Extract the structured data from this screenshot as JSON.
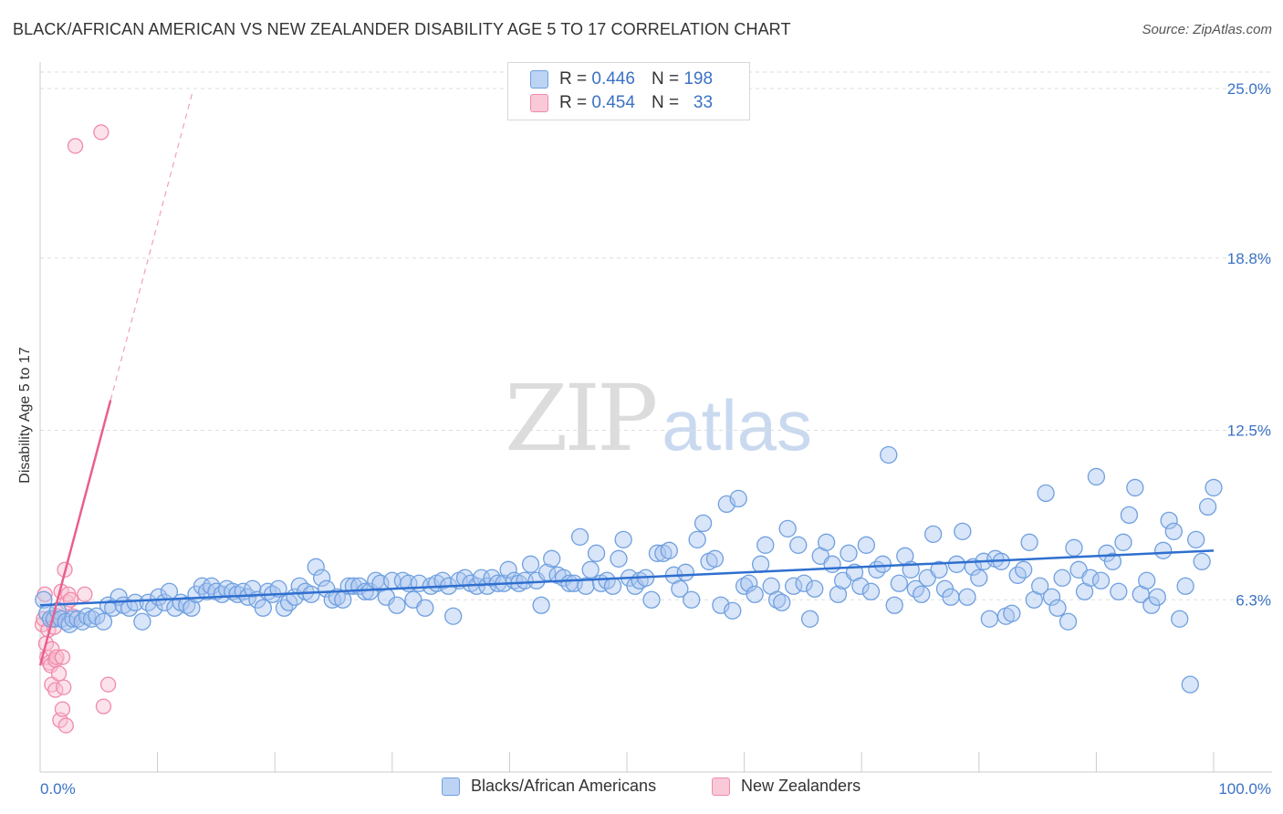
{
  "chart_data": {
    "type": "scatter",
    "title": "BLACK/AFRICAN AMERICAN VS NEW ZEALANDER DISABILITY AGE 5 TO 17 CORRELATION CHART",
    "source": "Source: ZipAtlas.com",
    "xlabel": "",
    "ylabel": "Disability Age 5 to 17",
    "xlim": [
      0,
      100
    ],
    "ylim": [
      0,
      26.0
    ],
    "x_tick_labels": [
      "0.0%",
      "100.0%"
    ],
    "y_ticks": [
      6.3,
      12.5,
      18.8,
      25.0
    ],
    "y_tick_labels": [
      "6.3%",
      "12.5%",
      "18.8%",
      "25.0%"
    ],
    "grid": true,
    "legend": {
      "placement": "top-center",
      "entries": [
        {
          "r_label": "R =",
          "r_value": "0.446",
          "n_label": "N =",
          "n_value": "198",
          "color": "#6fa0e0"
        },
        {
          "r_label": "R =",
          "r_value": "0.454",
          "n_label": "N =",
          "n_value": "33",
          "color": "#f08aac"
        }
      ]
    },
    "bottom_legend": [
      "Blacks/African Americans",
      "New Zealanders"
    ],
    "watermark": {
      "zip": "ZIP",
      "atlas": "atlas"
    },
    "colors": {
      "blue": "#6fa0e0",
      "blue_line": "#2f6fcf",
      "pink": "#f08aac",
      "pink_line": "#e8608e",
      "tick": "#3a72c4"
    },
    "series": [
      {
        "name": "Blacks/African Americans",
        "trend": {
          "x0": 0,
          "y0": 6.1,
          "x1": 100,
          "y1": 8.1
        },
        "points": [
          [
            0.3,
            6.3
          ],
          [
            0.6,
            5.8
          ],
          [
            0.9,
            5.6
          ],
          [
            1.2,
            5.6
          ],
          [
            1.5,
            5.9
          ],
          [
            1.8,
            5.6
          ],
          [
            2.2,
            5.5
          ],
          [
            2.5,
            5.4
          ],
          [
            2.8,
            5.6
          ],
          [
            3.2,
            5.6
          ],
          [
            3.6,
            5.5
          ],
          [
            4.0,
            5.7
          ],
          [
            4.4,
            5.6
          ],
          [
            4.8,
            5.7
          ],
          [
            5.4,
            5.5
          ],
          [
            5.8,
            6.1
          ],
          [
            6.2,
            6.0
          ],
          [
            6.7,
            6.4
          ],
          [
            7.1,
            6.1
          ],
          [
            7.6,
            6.0
          ],
          [
            8.1,
            6.2
          ],
          [
            8.7,
            5.5
          ],
          [
            9.2,
            6.2
          ],
          [
            9.7,
            6.0
          ],
          [
            10.1,
            6.4
          ],
          [
            10.6,
            6.2
          ],
          [
            11.0,
            6.6
          ],
          [
            11.5,
            6.0
          ],
          [
            12.0,
            6.2
          ],
          [
            12.5,
            6.1
          ],
          [
            12.9,
            6.0
          ],
          [
            13.3,
            6.5
          ],
          [
            13.8,
            6.8
          ],
          [
            14.2,
            6.6
          ],
          [
            14.6,
            6.8
          ],
          [
            15.0,
            6.6
          ],
          [
            15.5,
            6.5
          ],
          [
            15.9,
            6.7
          ],
          [
            16.4,
            6.6
          ],
          [
            16.8,
            6.5
          ],
          [
            17.3,
            6.6
          ],
          [
            17.7,
            6.4
          ],
          [
            18.1,
            6.7
          ],
          [
            18.5,
            6.3
          ],
          [
            19.0,
            6.0
          ],
          [
            19.4,
            6.6
          ],
          [
            19.8,
            6.5
          ],
          [
            20.3,
            6.7
          ],
          [
            20.8,
            6.0
          ],
          [
            21.2,
            6.2
          ],
          [
            21.7,
            6.4
          ],
          [
            22.1,
            6.8
          ],
          [
            22.6,
            6.6
          ],
          [
            23.1,
            6.5
          ],
          [
            23.5,
            7.5
          ],
          [
            24.0,
            7.1
          ],
          [
            24.4,
            6.7
          ],
          [
            24.9,
            6.3
          ],
          [
            25.3,
            6.4
          ],
          [
            25.8,
            6.3
          ],
          [
            26.3,
            6.8
          ],
          [
            26.7,
            6.8
          ],
          [
            27.2,
            6.8
          ],
          [
            27.7,
            6.6
          ],
          [
            28.1,
            6.6
          ],
          [
            28.6,
            7.0
          ],
          [
            29.0,
            6.9
          ],
          [
            29.5,
            6.4
          ],
          [
            30.0,
            7.0
          ],
          [
            30.4,
            6.1
          ],
          [
            30.9,
            7.0
          ],
          [
            31.4,
            6.9
          ],
          [
            31.8,
            6.3
          ],
          [
            32.3,
            6.9
          ],
          [
            32.8,
            6.0
          ],
          [
            33.3,
            6.8
          ],
          [
            33.8,
            6.9
          ],
          [
            34.3,
            7.0
          ],
          [
            34.8,
            6.8
          ],
          [
            35.2,
            5.7
          ],
          [
            35.7,
            7.0
          ],
          [
            36.2,
            7.1
          ],
          [
            36.7,
            6.9
          ],
          [
            37.2,
            6.8
          ],
          [
            37.6,
            7.1
          ],
          [
            38.1,
            6.8
          ],
          [
            38.5,
            7.1
          ],
          [
            39.0,
            6.9
          ],
          [
            39.5,
            6.9
          ],
          [
            39.9,
            7.4
          ],
          [
            40.4,
            7.0
          ],
          [
            40.8,
            6.9
          ],
          [
            41.3,
            7.0
          ],
          [
            41.8,
            7.6
          ],
          [
            42.3,
            7.0
          ],
          [
            42.7,
            6.1
          ],
          [
            43.2,
            7.3
          ],
          [
            43.6,
            7.8
          ],
          [
            44.1,
            7.2
          ],
          [
            44.6,
            7.1
          ],
          [
            45.1,
            6.9
          ],
          [
            45.5,
            6.9
          ],
          [
            46.0,
            8.6
          ],
          [
            46.5,
            6.8
          ],
          [
            46.9,
            7.4
          ],
          [
            47.4,
            8.0
          ],
          [
            47.8,
            6.9
          ],
          [
            48.3,
            7.0
          ],
          [
            48.8,
            6.8
          ],
          [
            49.3,
            7.8
          ],
          [
            49.7,
            8.5
          ],
          [
            50.2,
            7.1
          ],
          [
            50.7,
            6.8
          ],
          [
            51.1,
            7.0
          ],
          [
            51.6,
            7.1
          ],
          [
            52.1,
            6.3
          ],
          [
            52.6,
            8.0
          ],
          [
            53.1,
            8.0
          ],
          [
            53.6,
            8.1
          ],
          [
            54.0,
            7.2
          ],
          [
            54.5,
            6.7
          ],
          [
            55.0,
            7.3
          ],
          [
            55.5,
            6.3
          ],
          [
            56.0,
            8.5
          ],
          [
            56.5,
            9.1
          ],
          [
            57.0,
            7.7
          ],
          [
            57.5,
            7.8
          ],
          [
            58.0,
            6.1
          ],
          [
            58.5,
            9.8
          ],
          [
            59.0,
            5.9
          ],
          [
            59.5,
            10.0
          ],
          [
            60.0,
            6.8
          ],
          [
            60.4,
            6.9
          ],
          [
            60.9,
            6.5
          ],
          [
            61.4,
            7.6
          ],
          [
            61.8,
            8.3
          ],
          [
            62.3,
            6.8
          ],
          [
            62.8,
            6.3
          ],
          [
            63.2,
            6.2
          ],
          [
            63.7,
            8.9
          ],
          [
            64.2,
            6.8
          ],
          [
            64.6,
            8.3
          ],
          [
            65.1,
            6.9
          ],
          [
            65.6,
            5.6
          ],
          [
            66.0,
            6.7
          ],
          [
            66.5,
            7.9
          ],
          [
            67.0,
            8.4
          ],
          [
            67.5,
            7.6
          ],
          [
            68.0,
            6.5
          ],
          [
            68.4,
            7.0
          ],
          [
            68.9,
            8.0
          ],
          [
            69.4,
            7.3
          ],
          [
            69.9,
            6.8
          ],
          [
            70.4,
            8.3
          ],
          [
            70.8,
            6.6
          ],
          [
            71.3,
            7.4
          ],
          [
            71.8,
            7.6
          ],
          [
            72.3,
            11.6
          ],
          [
            72.8,
            6.1
          ],
          [
            73.2,
            6.9
          ],
          [
            73.7,
            7.9
          ],
          [
            74.2,
            7.4
          ],
          [
            74.6,
            6.7
          ],
          [
            75.1,
            6.5
          ],
          [
            75.6,
            7.1
          ],
          [
            76.1,
            8.7
          ],
          [
            76.6,
            7.4
          ],
          [
            77.1,
            6.7
          ],
          [
            77.6,
            6.4
          ],
          [
            78.1,
            7.6
          ],
          [
            78.6,
            8.8
          ],
          [
            79.0,
            6.4
          ],
          [
            79.5,
            7.5
          ],
          [
            80.0,
            7.1
          ],
          [
            80.4,
            7.7
          ],
          [
            80.9,
            5.6
          ],
          [
            81.4,
            7.8
          ],
          [
            81.9,
            7.7
          ],
          [
            82.3,
            5.7
          ],
          [
            82.8,
            5.8
          ],
          [
            83.3,
            7.2
          ],
          [
            83.8,
            7.4
          ],
          [
            84.3,
            8.4
          ],
          [
            84.7,
            6.3
          ],
          [
            85.2,
            6.8
          ],
          [
            85.7,
            10.2
          ],
          [
            86.2,
            6.4
          ],
          [
            86.7,
            6.0
          ],
          [
            87.1,
            7.1
          ],
          [
            87.6,
            5.5
          ],
          [
            88.1,
            8.2
          ],
          [
            88.5,
            7.4
          ],
          [
            89.0,
            6.6
          ],
          [
            89.5,
            7.1
          ],
          [
            90.0,
            10.8
          ],
          [
            90.4,
            7.0
          ],
          [
            90.9,
            8.0
          ],
          [
            91.4,
            7.7
          ],
          [
            91.9,
            6.6
          ],
          [
            92.3,
            8.4
          ],
          [
            92.8,
            9.4
          ],
          [
            93.3,
            10.4
          ],
          [
            93.8,
            6.5
          ],
          [
            94.3,
            7.0
          ],
          [
            94.7,
            6.1
          ],
          [
            95.2,
            6.4
          ],
          [
            95.7,
            8.1
          ],
          [
            96.2,
            9.2
          ],
          [
            96.6,
            8.8
          ],
          [
            97.1,
            5.6
          ],
          [
            97.6,
            6.8
          ],
          [
            98.0,
            3.2
          ],
          [
            98.5,
            8.5
          ],
          [
            99.0,
            7.7
          ],
          [
            99.5,
            9.7
          ],
          [
            100.0,
            10.4
          ]
        ]
      },
      {
        "name": "New Zealanders",
        "trend": {
          "x0": 0,
          "y0": 3.9,
          "x1": 6.0,
          "y1": 13.6
        },
        "trend_ext": {
          "x0": 6.0,
          "y0": 13.6,
          "x1": 13.0,
          "y1": 24.9
        },
        "points": [
          [
            0.2,
            5.4
          ],
          [
            0.3,
            5.6
          ],
          [
            0.4,
            6.5
          ],
          [
            0.5,
            4.7
          ],
          [
            0.6,
            4.2
          ],
          [
            0.7,
            5.2
          ],
          [
            0.8,
            4.0
          ],
          [
            0.9,
            3.9
          ],
          [
            1.0,
            3.2
          ],
          [
            1.0,
            4.5
          ],
          [
            1.1,
            5.6
          ],
          [
            1.2,
            5.3
          ],
          [
            1.3,
            4.1
          ],
          [
            1.3,
            3.0
          ],
          [
            1.4,
            4.2
          ],
          [
            1.5,
            5.7
          ],
          [
            1.6,
            3.6
          ],
          [
            1.7,
            1.9
          ],
          [
            1.8,
            6.6
          ],
          [
            1.9,
            2.3
          ],
          [
            1.9,
            4.2
          ],
          [
            2.0,
            3.1
          ],
          [
            2.1,
            7.4
          ],
          [
            2.2,
            1.7
          ],
          [
            2.3,
            6.2
          ],
          [
            2.4,
            6.5
          ],
          [
            2.6,
            6.3
          ],
          [
            2.8,
            5.7
          ],
          [
            3.0,
            22.9
          ],
          [
            3.8,
            6.5
          ],
          [
            5.2,
            23.4
          ],
          [
            5.4,
            2.4
          ],
          [
            5.8,
            3.2
          ]
        ]
      }
    ]
  }
}
